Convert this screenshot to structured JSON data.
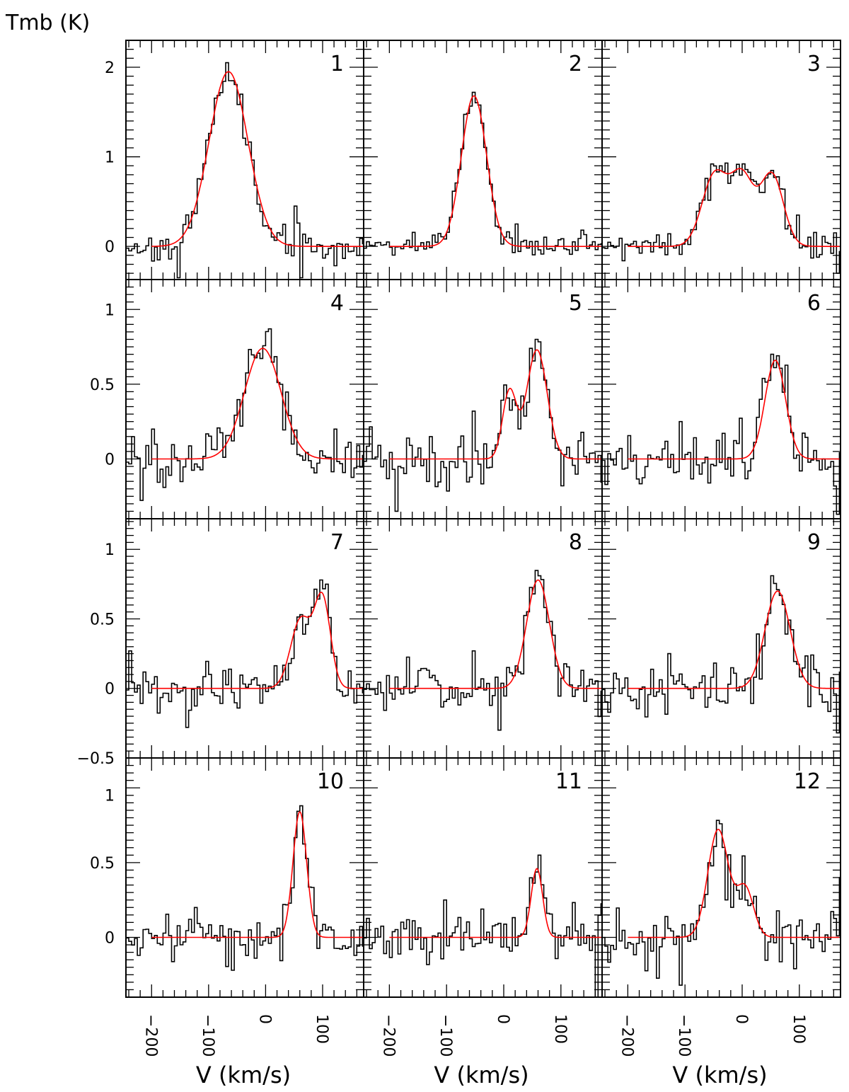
{
  "chart_data": {
    "type": "line",
    "ylabel": "Tmb (K)",
    "xlabel": "V (km/s)",
    "xlim": [
      -245,
      172
    ],
    "x_ticks": [
      -200,
      -100,
      0,
      100
    ],
    "x_tick_labels": [
      "-200",
      "-100",
      "0",
      "100"
    ],
    "grid": false,
    "colors": {
      "spectrum": "#000000",
      "fit": "#ff0000"
    },
    "series": [
      {
        "name": "observed spectrum",
        "style": "histogram"
      },
      {
        "name": "gaussian fit",
        "style": "line"
      }
    ],
    "rows": [
      {
        "ylim": [
          -0.37,
          2.3
        ],
        "y_ticks": [
          0,
          1,
          2
        ],
        "y_tick_labels": [
          "0",
          "1",
          "2"
        ]
      },
      {
        "ylim": [
          -0.4,
          1.2
        ],
        "y_ticks": [
          0,
          0.5,
          1
        ],
        "y_tick_labels": [
          "0",
          "0.5",
          "1"
        ]
      },
      {
        "ylim": [
          -0.5,
          1.22
        ],
        "y_ticks": [
          -0.5,
          0,
          0.5,
          1
        ],
        "y_tick_labels": [
          "-0.5",
          "0",
          "0.5",
          "1"
        ]
      },
      {
        "ylim": [
          -0.4,
          1.2
        ],
        "y_ticks": [
          0,
          0.5,
          1
        ],
        "y_tick_labels": [
          "0",
          "0.5",
          "1"
        ]
      }
    ],
    "panels": [
      {
        "label": "1",
        "fit": [
          {
            "amp": 1.95,
            "center": -65,
            "sigma": 34
          }
        ],
        "noise": 0.09,
        "seed": 11,
        "spikes": [
          [
            -155,
            -0.35
          ],
          [
            60,
            -0.35
          ],
          [
            -72,
            2.05
          ],
          [
            50,
            0.45
          ]
        ]
      },
      {
        "label": "2",
        "fit": [
          {
            "amp": 1.68,
            "center": -52,
            "sigma": 22
          }
        ],
        "noise": 0.07,
        "seed": 22,
        "spikes": [
          [
            -55,
            1.72
          ],
          [
            20,
            0.25
          ]
        ]
      },
      {
        "label": "3",
        "fit": [
          {
            "amp": 0.8,
            "center": -48,
            "sigma": 22
          },
          {
            "amp": 0.76,
            "center": 0,
            "sigma": 20
          },
          {
            "amp": 0.8,
            "center": 52,
            "sigma": 20
          }
        ],
        "noise": 0.08,
        "seed": 33,
        "spikes": [
          [
            -30,
            0.93
          ],
          [
            165,
            -0.3
          ],
          [
            95,
            0.35
          ]
        ]
      },
      {
        "label": "4",
        "fit": [
          {
            "amp": 0.74,
            "center": -5,
            "sigma": 32
          }
        ],
        "noise": 0.09,
        "seed": 44,
        "spikes": [
          [
            5,
            0.87
          ],
          [
            -200,
            0.2
          ],
          [
            120,
            0.2
          ]
        ]
      },
      {
        "label": "5",
        "fit": [
          {
            "amp": 0.45,
            "center": 10,
            "sigma": 12
          },
          {
            "amp": 0.73,
            "center": 58,
            "sigma": 18
          }
        ],
        "noise": 0.1,
        "seed": 55,
        "spikes": [
          [
            -190,
            -0.35
          ],
          [
            55,
            0.8
          ],
          [
            -55,
            0.32
          ],
          [
            100,
            -0.18
          ]
        ]
      },
      {
        "label": "6",
        "fit": [
          {
            "amp": 0.66,
            "center": 58,
            "sigma": 18
          }
        ],
        "noise": 0.1,
        "seed": 66,
        "spikes": [
          [
            165,
            -0.37
          ],
          [
            58,
            0.69
          ],
          [
            -110,
            0.25
          ]
        ]
      },
      {
        "label": "7",
        "fit": [
          {
            "amp": 0.5,
            "center": 62,
            "sigma": 18
          },
          {
            "amp": 0.63,
            "center": 100,
            "sigma": 14
          }
        ],
        "noise": 0.09,
        "seed": 77,
        "spikes": [
          [
            -240,
            0.27
          ],
          [
            95,
            0.78
          ],
          [
            -140,
            -0.28
          ]
        ]
      },
      {
        "label": "8",
        "fit": [
          {
            "amp": 0.78,
            "center": 60,
            "sigma": 20
          }
        ],
        "noise": 0.1,
        "seed": 88,
        "spikes": [
          [
            -10,
            -0.3
          ],
          [
            60,
            0.81
          ],
          [
            -55,
            0.27
          ]
        ]
      },
      {
        "label": "9",
        "fit": [
          {
            "amp": 0.7,
            "center": 62,
            "sigma": 22
          }
        ],
        "noise": 0.1,
        "seed": 99,
        "spikes": [
          [
            165,
            -0.32
          ],
          [
            58,
            0.71
          ],
          [
            -130,
            0.25
          ]
        ]
      },
      {
        "label": "10",
        "fit": [
          {
            "amp": 0.84,
            "center": 60,
            "sigma": 12
          }
        ],
        "noise": 0.09,
        "seed": 110,
        "spikes": [
          [
            60,
            0.88
          ],
          [
            -125,
            0.2
          ],
          [
            -60,
            -0.22
          ]
        ]
      },
      {
        "label": "11",
        "fit": [
          {
            "amp": 0.46,
            "center": 58,
            "sigma": 10
          }
        ],
        "noise": 0.1,
        "seed": 121,
        "spikes": [
          [
            160,
            -0.4
          ],
          [
            58,
            0.55
          ],
          [
            -105,
            0.25
          ]
        ]
      },
      {
        "label": "12",
        "fit": [
          {
            "amp": 0.72,
            "center": -42,
            "sigma": 18
          },
          {
            "amp": 0.33,
            "center": 5,
            "sigma": 15
          }
        ],
        "noise": 0.11,
        "seed": 132,
        "spikes": [
          [
            -110,
            -0.32
          ],
          [
            -42,
            0.76
          ],
          [
            170,
            0.4
          ]
        ]
      }
    ]
  }
}
